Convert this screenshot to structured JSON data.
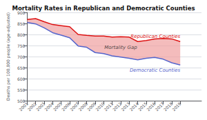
{
  "chart_data": {
    "type": "line",
    "title": "Mortality Rates in Republican and Democratic Counties",
    "y_label": "Deaths per 100,000 people (age-adjusted)",
    "x": [
      2001,
      2002,
      2003,
      2004,
      2005,
      2006,
      2007,
      2008,
      2009,
      2010,
      2011,
      2012,
      2013,
      2014,
      2015,
      2016,
      2017,
      2018,
      2019
    ],
    "xlim": [
      2001,
      2021.5
    ],
    "xticks": [
      2001,
      2002,
      2003,
      2004,
      2005,
      2006,
      2007,
      2008,
      2009,
      2010,
      2011,
      2012,
      2013,
      2014,
      2015,
      2016,
      2017,
      2018,
      2019
    ],
    "ylim": [
      500,
      900
    ],
    "yticks": [
      500,
      550,
      600,
      650,
      700,
      750,
      800,
      850,
      900
    ],
    "grid": true,
    "series": [
      {
        "name": "Republican Counties",
        "color": "#dd1111",
        "values": [
          868,
          872,
          858,
          845,
          840,
          835,
          800,
          796,
          793,
          793,
          788,
          790,
          788,
          768,
          773,
          780,
          782,
          780,
          768
        ]
      },
      {
        "name": "Democratic Counties",
        "color": "#5565cc",
        "values": [
          855,
          848,
          830,
          808,
          797,
          785,
          748,
          742,
          718,
          713,
          703,
          698,
          692,
          685,
          692,
          696,
          688,
          672,
          662
        ]
      }
    ],
    "fill": {
      "color": "#f0a0a0"
    },
    "annotations": [
      {
        "text": "Mortality Gap",
        "x": 2012,
        "y": 740
      }
    ]
  }
}
